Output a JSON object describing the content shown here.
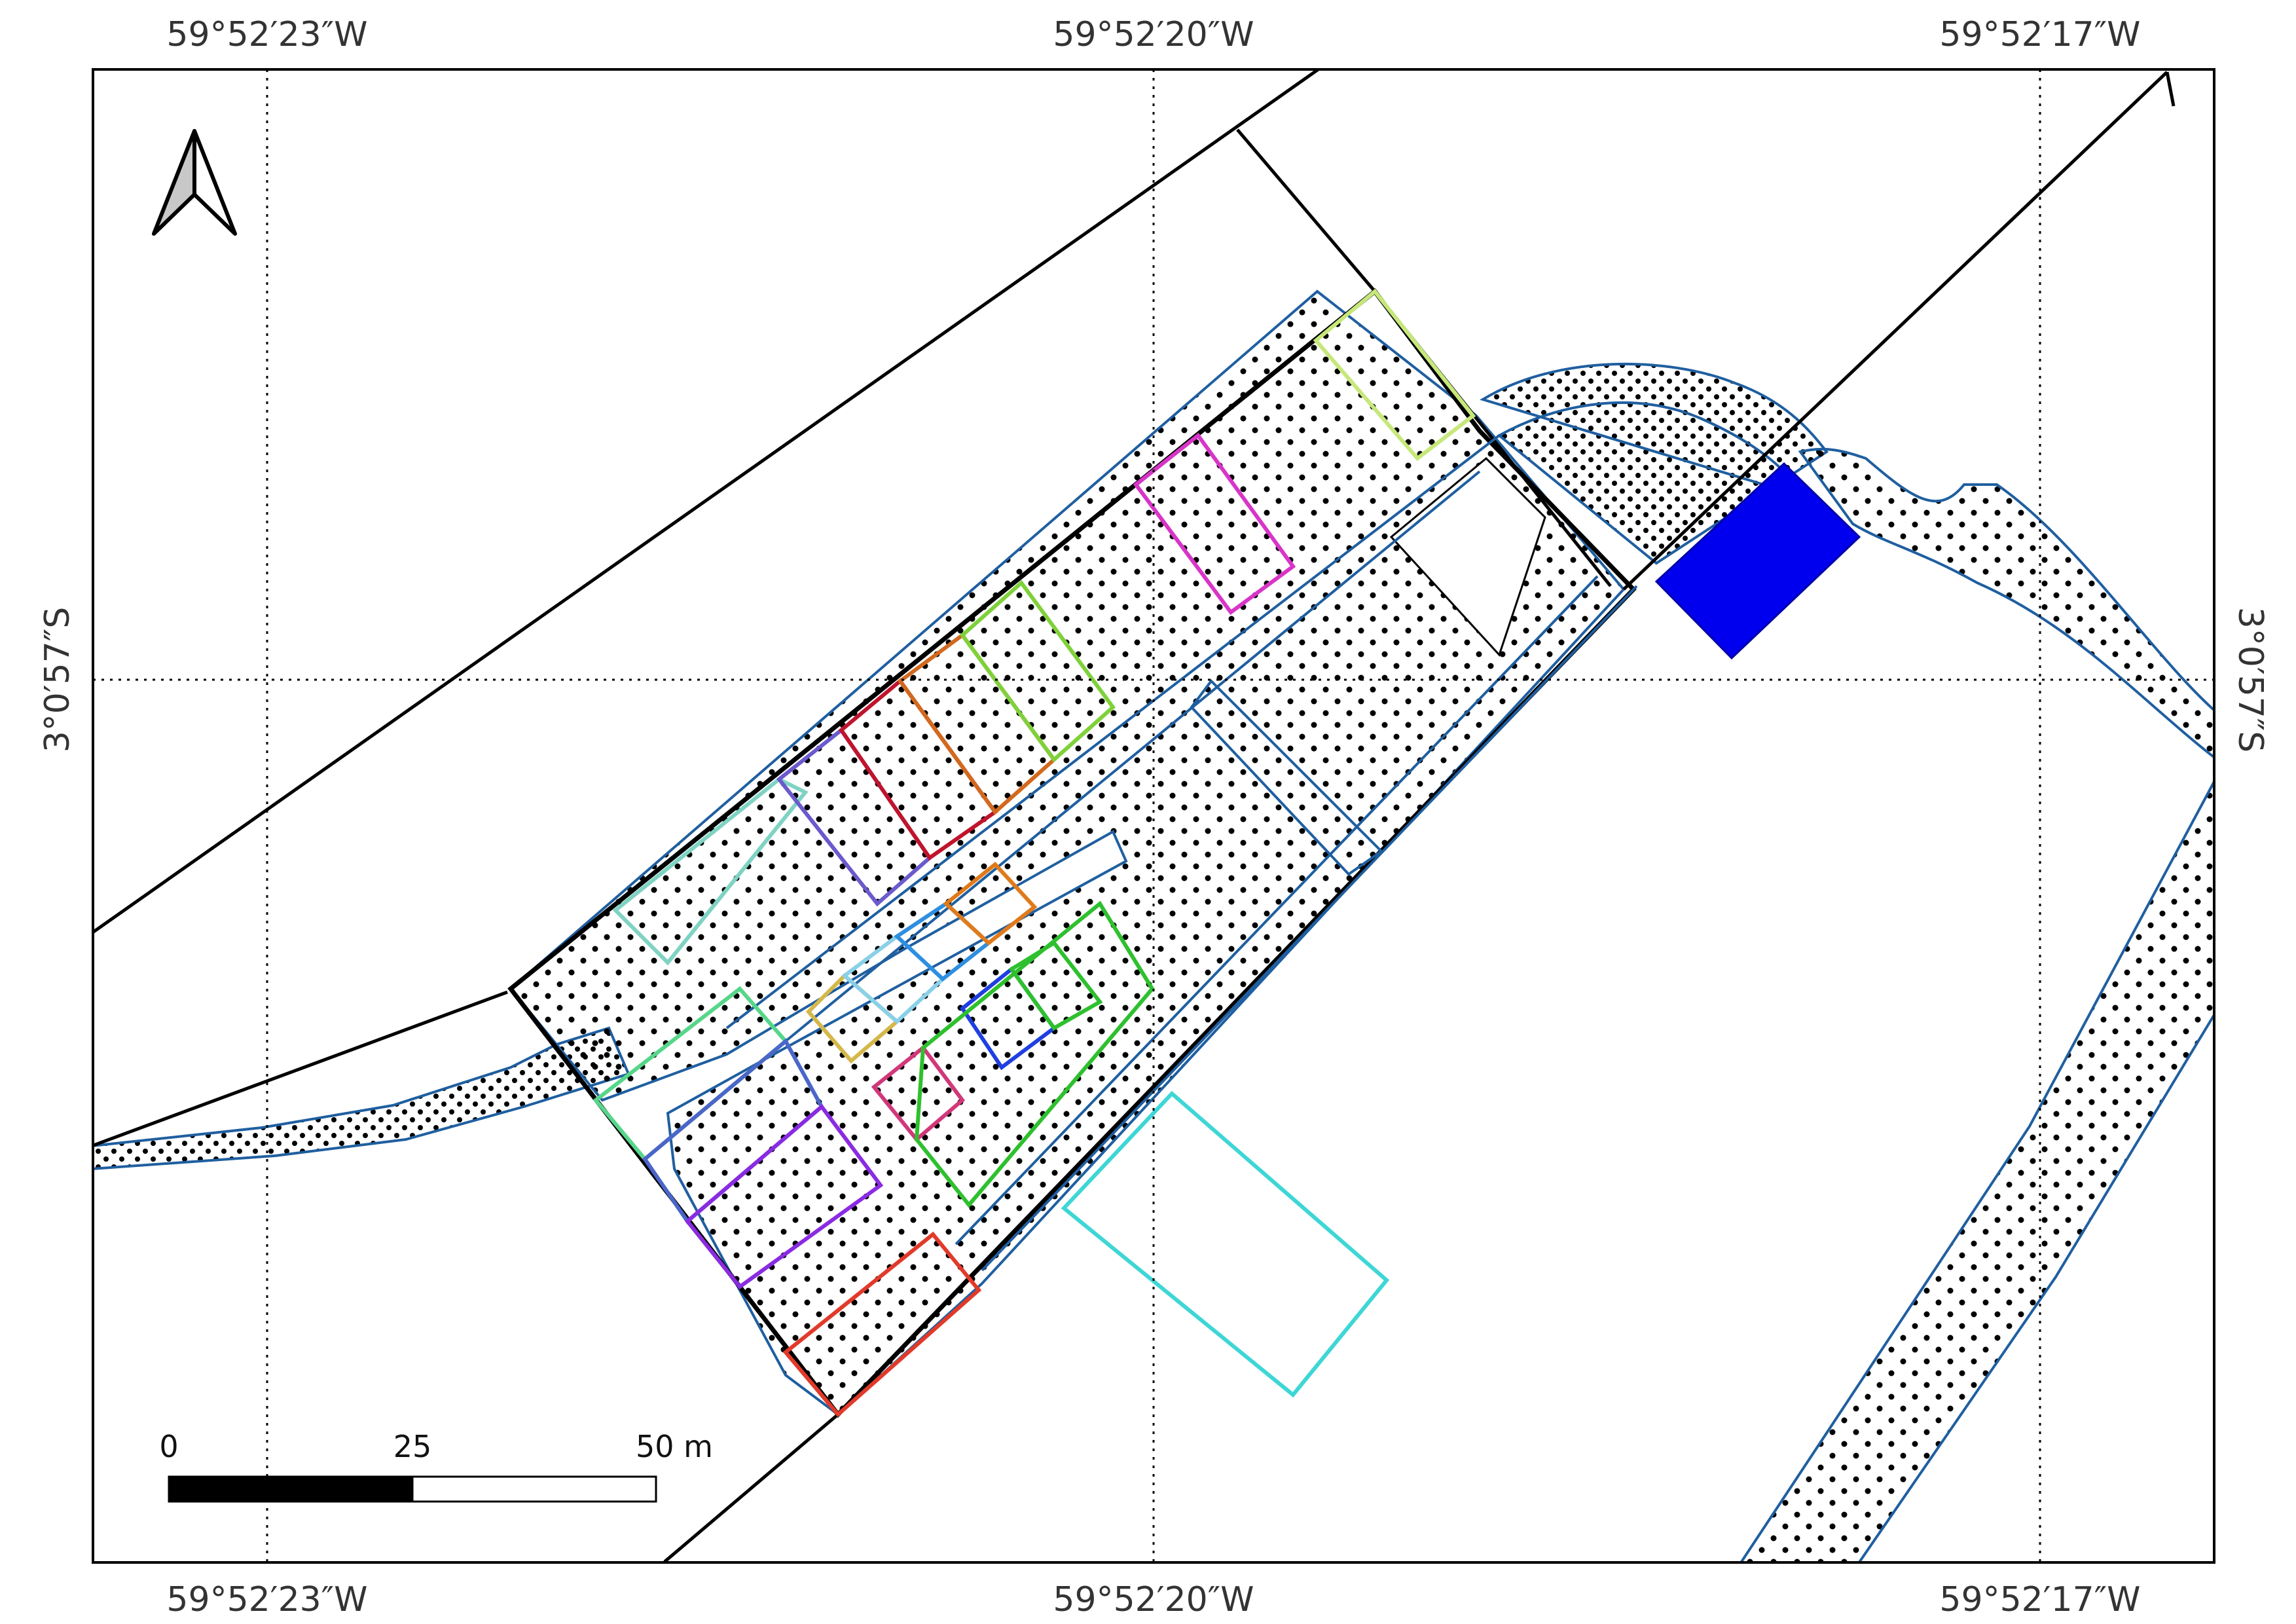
{
  "map": {
    "top_labels": [
      "59°52′23″W",
      "59°52′20″W",
      "59°52′17″W"
    ],
    "bottom_labels": [
      "59°52′23″W",
      "59°52′20″W",
      "59°52′17″W"
    ],
    "left_label": "3°0′57″S",
    "right_label": "3°0′57″S",
    "scale": {
      "labels": [
        "0",
        "25",
        "50 m"
      ]
    },
    "north_arrow": "north-arrow-icon",
    "colors": {
      "road_outline": "#1f5fa0",
      "highlight_lot": "#0000ee",
      "lot_colors": [
        "#7fd3c3",
        "#6a5acd",
        "#c0142c",
        "#d2691e",
        "#7fd13a",
        "#c6e87a",
        "#d835c8",
        "#57d68a",
        "#4a66c9",
        "#8a2be2",
        "#e23a2a",
        "#d4b84a",
        "#89d0e8",
        "#2e8fe0",
        "#e07a1a",
        "#d1387a",
        "#1f3fe0",
        "#2ec02e",
        "#3ed6d6"
      ]
    }
  }
}
